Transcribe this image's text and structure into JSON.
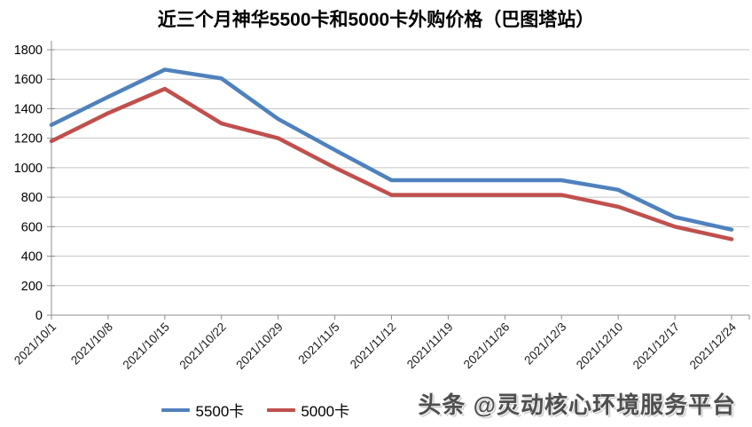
{
  "title": "近三个月神华5500卡和5000卡外购价格（巴图塔站）",
  "watermark": "头条 @灵动核心环境服务平台",
  "colors": {
    "grid": "#c6c6c6",
    "axis": "#8c8c8c",
    "label": "#1a1a1a",
    "series_blue": "#4f81bd",
    "series_red": "#c0504d"
  },
  "chart_data": {
    "type": "line",
    "title": "近三个月神华5500卡和5000卡外购价格（巴图塔站）",
    "categories": [
      "2021/10/1",
      "2021/10/8",
      "2021/10/15",
      "2021/10/22",
      "2021/10/29",
      "2021/11/5",
      "2021/11/12",
      "2021/11/19",
      "2021/11/26",
      "2021/12/3",
      "2021/12/10",
      "2021/12/17",
      "2021/12/24"
    ],
    "series": [
      {
        "name": "5500卡",
        "color": "#4f81bd",
        "values": [
          1290,
          1480,
          1665,
          1605,
          1330,
          1120,
          915,
          915,
          915,
          915,
          850,
          665,
          580
        ]
      },
      {
        "name": "5000卡",
        "color": "#c0504d",
        "values": [
          1180,
          1370,
          1535,
          1300,
          1200,
          1000,
          815,
          815,
          815,
          815,
          735,
          600,
          515
        ]
      }
    ],
    "xlabel": "",
    "ylabel": "",
    "ylim": [
      0,
      1800
    ],
    "y_step": 200,
    "grid": true,
    "legend_position": "bottom"
  }
}
